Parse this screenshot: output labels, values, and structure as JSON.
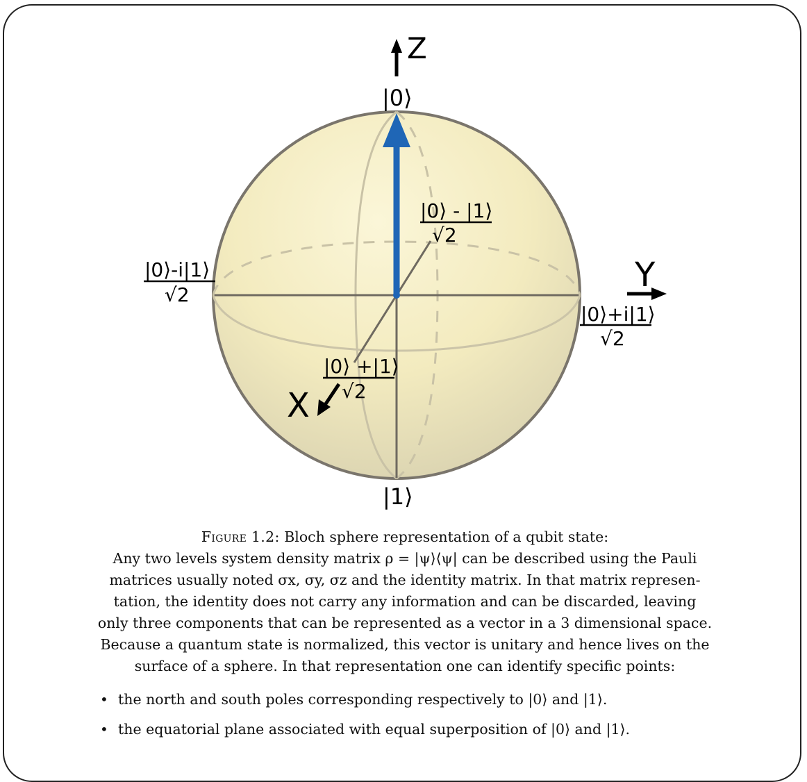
{
  "diagram": {
    "axis_labels": {
      "z": "Z",
      "y": "Y",
      "x": "X"
    },
    "states": {
      "north": "|0⟩",
      "south": "|1⟩",
      "plus_y_numerator": "|0⟩+i|1⟩",
      "plus_y_denominator": "√2",
      "minus_y_numerator": "|0⟩-i|1⟩",
      "minus_y_denominator": "√2",
      "plus_x_numerator": "|0⟩ +|1⟩",
      "plus_x_denominator": "√2",
      "minus_x_numerator": "|0⟩ - |1⟩",
      "minus_x_denominator": "√2"
    },
    "colors": {
      "state_vector": "#1f66b6",
      "sphere_fill": "#f6eec0",
      "sphere_edge": "#7a756c"
    }
  },
  "caption": {
    "figure_label": "Figure 1.2:",
    "title": "Bloch sphere representation of a qubit state:",
    "paragraph_lines": [
      "Any two levels system density matrix ρ = |ψ⟩⟨ψ| can be described using the Pauli",
      "matrices usually noted σx, σy, σz and the identity matrix. In that matrix represen-",
      "tation, the identity does not carry any information and can be discarded, leaving",
      "only three components that can be represented as a vector in a 3 dimensional space.",
      "Because a quantum state is normalized, this vector is unitary and hence lives on the",
      "surface of a sphere. In that representation one can identify specific points:"
    ],
    "bullets": [
      "the north and south poles corresponding respectively to |0⟩ and |1⟩.",
      "the equatorial plane associated with equal superposition of |0⟩ and |1⟩."
    ]
  }
}
